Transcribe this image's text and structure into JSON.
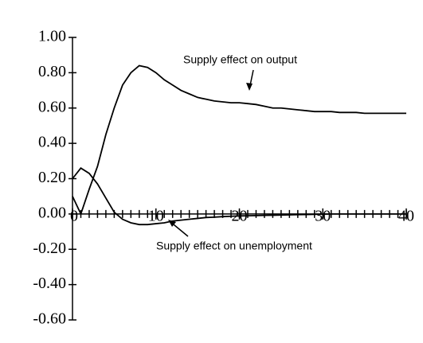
{
  "chart_data": {
    "type": "line",
    "x": [
      0,
      1,
      2,
      3,
      4,
      5,
      6,
      7,
      8,
      9,
      10,
      11,
      12,
      13,
      14,
      15,
      16,
      17,
      18,
      19,
      20,
      21,
      22,
      23,
      24,
      25,
      26,
      27,
      28,
      29,
      30,
      31,
      32,
      33,
      34,
      35,
      36,
      37,
      38,
      39,
      40
    ],
    "series": [
      {
        "name": "Supply effect on output",
        "color": "#000000",
        "values": [
          0.1,
          0.0,
          0.14,
          0.27,
          0.45,
          0.6,
          0.73,
          0.8,
          0.84,
          0.83,
          0.8,
          0.76,
          0.73,
          0.7,
          0.68,
          0.66,
          0.65,
          0.64,
          0.635,
          0.63,
          0.63,
          0.625,
          0.62,
          0.61,
          0.6,
          0.6,
          0.595,
          0.59,
          0.585,
          0.58,
          0.58,
          0.58,
          0.575,
          0.575,
          0.575,
          0.57,
          0.57,
          0.57,
          0.57,
          0.57,
          0.57
        ]
      },
      {
        "name": "Supply effect on unemployment",
        "color": "#000000",
        "values": [
          0.2,
          0.26,
          0.23,
          0.17,
          0.09,
          0.01,
          -0.03,
          -0.05,
          -0.06,
          -0.06,
          -0.055,
          -0.05,
          -0.04,
          -0.035,
          -0.03,
          -0.025,
          -0.02,
          -0.018,
          -0.015,
          -0.013,
          -0.011,
          -0.01,
          -0.009,
          -0.008,
          -0.007,
          -0.006,
          -0.005,
          -0.004,
          -0.003,
          -0.002,
          -0.001,
          0,
          0,
          0,
          0,
          0,
          0,
          0,
          0,
          0,
          0
        ]
      }
    ],
    "xlim": [
      0,
      40
    ],
    "xticks": [
      0,
      10,
      20,
      30,
      40
    ],
    "ylim": [
      -0.6,
      1.0
    ],
    "yticks": [
      {
        "value": -0.6,
        "label": "-0.60"
      },
      {
        "value": -0.4,
        "label": "-0.40"
      },
      {
        "value": -0.2,
        "label": "-0.20"
      },
      {
        "value": 0,
        "label": "0.00"
      },
      {
        "value": 0.2,
        "label": "0.20"
      },
      {
        "value": 0.4,
        "label": "0.40"
      },
      {
        "value": 0.6,
        "label": "0.60"
      },
      {
        "value": 0.8,
        "label": "0.80"
      },
      {
        "value": 1.0,
        "label": "1.00"
      }
    ]
  }
}
